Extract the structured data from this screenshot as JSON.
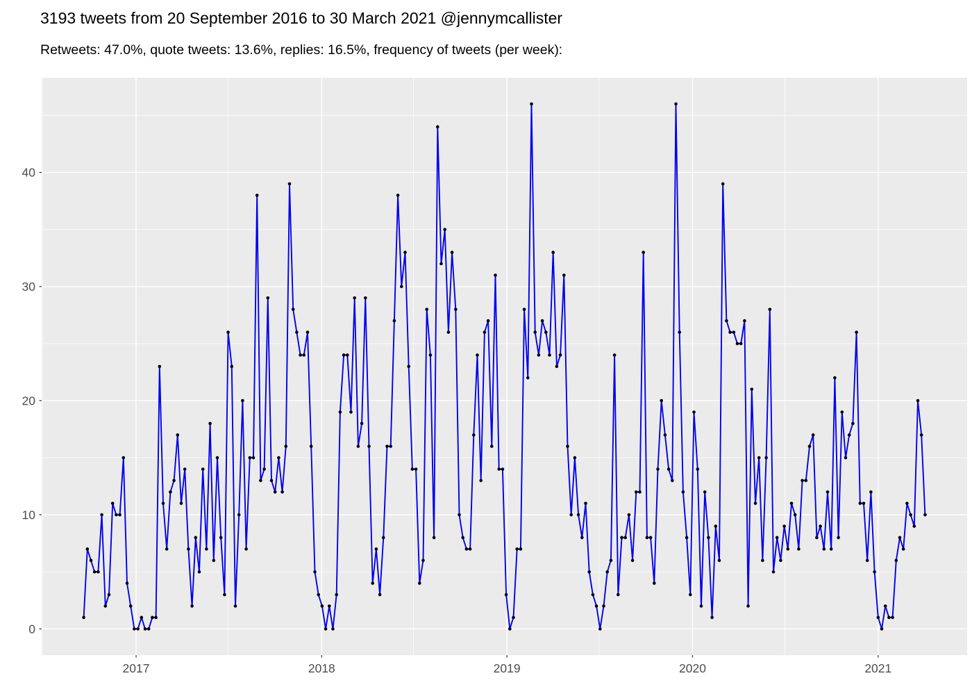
{
  "title": "3193 tweets from 20 September 2016 to 30 March 2021 @jennymcallister",
  "subtitle": "Retweets: 47.0%, quote tweets: 13.6%, replies: 16.5%, frequency of tweets (per week):",
  "chart_data": {
    "type": "line",
    "series_name": "frequency of tweets per week",
    "x_start_label": "20 September 2016",
    "x_end_label": "30 March 2021",
    "values": [
      1,
      7,
      6,
      5,
      5,
      10,
      2,
      3,
      11,
      10,
      10,
      15,
      4,
      2,
      0,
      0,
      1,
      0,
      0,
      1,
      1,
      23,
      11,
      7,
      12,
      13,
      17,
      11,
      14,
      7,
      2,
      8,
      5,
      14,
      7,
      18,
      6,
      15,
      8,
      3,
      26,
      23,
      2,
      10,
      20,
      7,
      15,
      15,
      38,
      13,
      14,
      29,
      13,
      12,
      15,
      12,
      16,
      39,
      28,
      26,
      24,
      24,
      26,
      16,
      5,
      3,
      2,
      0,
      2,
      0,
      3,
      19,
      24,
      24,
      19,
      29,
      16,
      18,
      29,
      16,
      4,
      7,
      3,
      8,
      16,
      16,
      27,
      38,
      30,
      33,
      23,
      14,
      14,
      4,
      6,
      28,
      24,
      8,
      44,
      32,
      35,
      26,
      33,
      28,
      10,
      8,
      7,
      7,
      17,
      24,
      13,
      26,
      27,
      16,
      31,
      14,
      14,
      3,
      0,
      1,
      7,
      7,
      28,
      22,
      46,
      26,
      24,
      27,
      26,
      24,
      33,
      23,
      24,
      31,
      16,
      10,
      15,
      10,
      8,
      11,
      5,
      3,
      2,
      0,
      2,
      5,
      6,
      24,
      3,
      8,
      8,
      10,
      6,
      12,
      12,
      33,
      8,
      8,
      4,
      14,
      20,
      17,
      14,
      13,
      46,
      26,
      12,
      8,
      3,
      19,
      14,
      2,
      12,
      8,
      1,
      9,
      6,
      39,
      27,
      26,
      26,
      25,
      25,
      27,
      2,
      21,
      11,
      15,
      6,
      15,
      28,
      5,
      8,
      6,
      9,
      7,
      11,
      10,
      7,
      13,
      13,
      16,
      17,
      8,
      9,
      7,
      12,
      7,
      22,
      8,
      19,
      15,
      17,
      18,
      26,
      11,
      11,
      6,
      12,
      5,
      1,
      0,
      2,
      1,
      1,
      6,
      8,
      7,
      11,
      10,
      9,
      20,
      17,
      10
    ],
    "x_ticks": [
      {
        "label": "2017",
        "index": 14.5
      },
      {
        "label": "2018",
        "index": 65.9
      },
      {
        "label": "2019",
        "index": 117.2
      },
      {
        "label": "2020",
        "index": 168.6
      },
      {
        "label": "2021",
        "index": 220.0
      }
    ],
    "x_minor_ticks": [
      -11.4,
      40.0,
      91.3,
      142.7,
      194.2
    ],
    "y_ticks": [
      0,
      10,
      20,
      30,
      40
    ],
    "y_minor_ticks": [
      5,
      15,
      25,
      35,
      45
    ],
    "ylim": [
      0,
      46
    ],
    "grid": true,
    "legend_position": "none",
    "colors": {
      "line": "#0000EE",
      "point": "#000000",
      "panel_bg": "#EBEBEB",
      "grid": "#FFFFFF",
      "axis_text": "#4D4D4D",
      "tick_mark": "#333333"
    }
  }
}
